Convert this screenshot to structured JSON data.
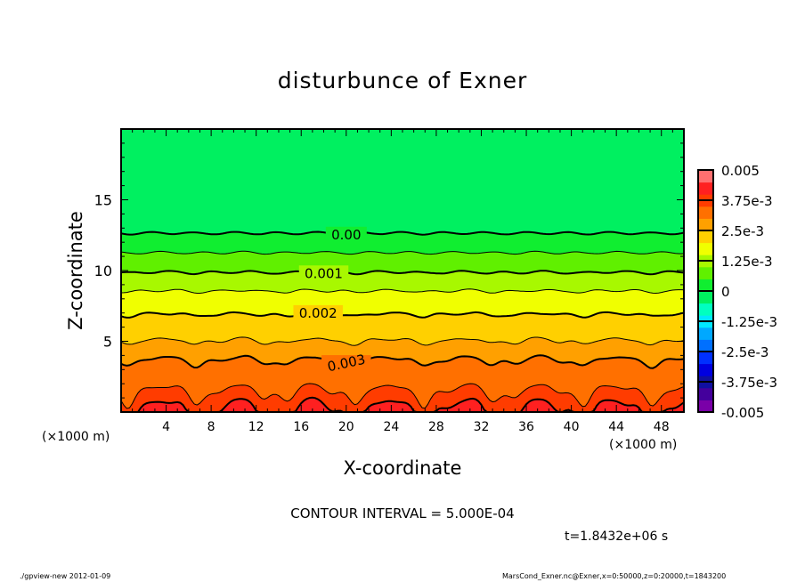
{
  "chart_data": {
    "type": "heatmap",
    "subtype": "filled-contour",
    "title": "disturbunce of Exner",
    "xlabel": "X-coordinate",
    "ylabel": "Z-coordinate",
    "x_unit_left": "(×1000 m)",
    "x_unit_right": "(×1000 m)",
    "xlim": [
      0,
      50
    ],
    "ylim": [
      0,
      20
    ],
    "x_ticks": [
      "4",
      "8",
      "12",
      "16",
      "20",
      "24",
      "28",
      "32",
      "36",
      "40",
      "44",
      "48"
    ],
    "y_ticks": [
      "5",
      "10",
      "15"
    ],
    "contour_interval": 0.0005,
    "contour_interval_text": "CONTOUR INTERVAL = 5.000E-04",
    "time_text": "t=1.8432e+06 s",
    "contour_labels": [
      {
        "level": 0,
        "text": "0.00",
        "x": 20,
        "z": 12.6
      },
      {
        "level": 0.001,
        "text": "0.001",
        "x": 18,
        "z": 9.9
      },
      {
        "level": 0.002,
        "text": "0.002",
        "x": 17.5,
        "z": 6.9
      },
      {
        "level": 0.003,
        "text": "0.003",
        "x": 20,
        "z": 3.6
      }
    ],
    "profile_z": [
      0,
      1.45,
      3.65,
      5.03,
      6.9,
      8.55,
      9.87,
      11.26,
      12.64,
      20
    ],
    "profile_value": [
      0.0041,
      0.0035,
      0.003,
      0.0025,
      0.002,
      0.0015,
      0.001,
      0.0005,
      0,
      -0.0004
    ],
    "colorbar": {
      "range": [
        -0.005,
        0.005
      ],
      "tick_labels": [
        "0.005",
        "3.75e-3",
        "2.5e-3",
        "1.25e-3",
        "0",
        "-1.25e-3",
        "-2.5e-3",
        "-3.75e-3",
        "-0.005"
      ],
      "colors": [
        "#7a00a8",
        "#44009c",
        "#1010a0",
        "#0000e0",
        "#0030ff",
        "#0070ff",
        "#00a8ff",
        "#00e8ff",
        "#00ffc0",
        "#00f060",
        "#10ee30",
        "#60f000",
        "#a8f800",
        "#f0ff00",
        "#ffd000",
        "#ffa000",
        "#ff7000",
        "#ff3c00",
        "#ff2020",
        "#ff7070"
      ]
    }
  },
  "footer": {
    "left": "./gpview-new  2012-01-09",
    "right": "MarsCond_Exner.nc@Exner,x=0:50000,z=0:20000,t=1843200"
  }
}
